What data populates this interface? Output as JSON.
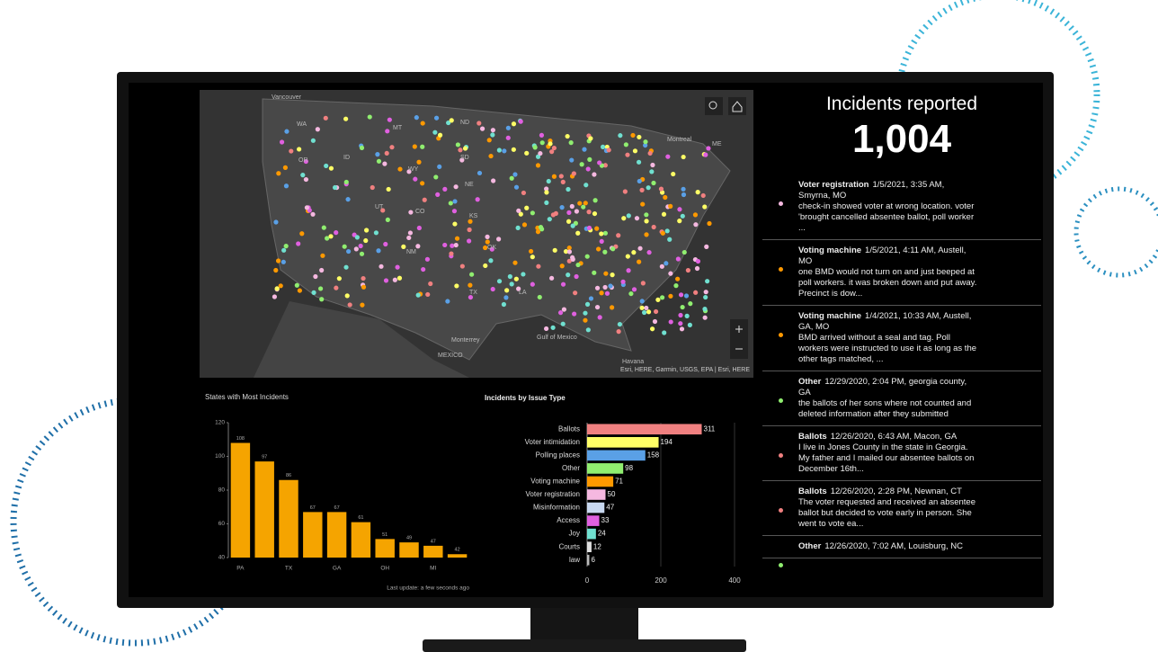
{
  "map": {
    "labels": [
      "Vancouver",
      "WA",
      "MT",
      "ND",
      "OR",
      "ID",
      "WY",
      "SD",
      "NE",
      "UT",
      "CO",
      "KS",
      "OK",
      "NM",
      "TX",
      "LA",
      "Montreal",
      "ME",
      "Monterrey",
      "MEXICO",
      "Gulf of Mexico",
      "Havana"
    ],
    "attribution": "Esri, HERE, Garmin, USGS, EPA | Esri, HERE"
  },
  "panel": {
    "title": "Incidents reported",
    "total": "1,004",
    "items": [
      {
        "title": "Voter registration",
        "meta": "1/5/2021, 3:35 AM, Smyrna, MO",
        "text": "check-in showed voter at wrong location. voter 'brought cancelled absentee ballot, poll worker ...",
        "color": "#f5b8e0"
      },
      {
        "title": "Voting machine",
        "meta": "1/5/2021, 4:11 AM, Austell, MO",
        "text": "one BMD would not turn on and just beeped at poll workers. it was broken down and put away. Precinct is dow...",
        "color": "#ff9900"
      },
      {
        "title": "Voting machine",
        "meta": "1/4/2021, 10:33 AM, Austell, GA, MO",
        "text": "BMD arrived without a seal and tag. Poll workers were instructed to use it as long as the other tags matched, ...",
        "color": "#ff9900"
      },
      {
        "title": "Other",
        "meta": "12/29/2020, 2:04 PM, georgia county, GA",
        "text": "the ballots of her sons where not counted and deleted information after they submitted",
        "color": "#90ee70"
      },
      {
        "title": "Ballots",
        "meta": "12/26/2020, 6:43 AM, Macon, GA",
        "text": "I live in Jones County in the state in Georgia. My father and I mailed our absentee ballots on December 16th...",
        "color": "#f08080"
      },
      {
        "title": "Ballots",
        "meta": "12/26/2020, 2:28 PM, Newnan, CT",
        "text": "The voter requested and received an absentee ballot but decided to vote early in person. She went to vote ea...",
        "color": "#f08080"
      },
      {
        "title": "Other",
        "meta": "12/26/2020, 7:02 AM, Louisburg, NC",
        "text": "",
        "color": "#90ee70"
      }
    ]
  },
  "chart_data": [
    {
      "type": "bar",
      "title": "States with Most Incidents",
      "categories": [
        "PA",
        null,
        "TX",
        null,
        "GA",
        null,
        "OH",
        null,
        "MI",
        null
      ],
      "values": [
        108,
        97,
        86,
        67,
        67,
        61,
        51,
        49,
        47,
        42
      ],
      "color": "#f5a400",
      "ylim": [
        40,
        120
      ],
      "yticks": [
        40,
        60,
        80,
        100,
        120
      ],
      "footnote": "Last update: a few seconds ago"
    },
    {
      "type": "hbar",
      "title": "Incidents by Issue Type",
      "categories": [
        "Ballots",
        "Voter intimidation",
        "Polling places",
        "Other",
        "Voting machine",
        "Voter registration",
        "Misinformation",
        "Access",
        "Joy",
        "Courts",
        "law"
      ],
      "values": [
        311,
        194,
        158,
        98,
        71,
        50,
        47,
        33,
        24,
        12,
        6
      ],
      "colors": [
        "#f08080",
        "#ffff66",
        "#5aa0e6",
        "#90ee70",
        "#ff9900",
        "#f5b8e0",
        "#c8d8f0",
        "#e060e0",
        "#70e0d0",
        "#dddddd",
        "#bbbbbb"
      ],
      "xlim": [
        0,
        400
      ],
      "xticks": [
        0,
        200,
        400
      ],
      "grid": true
    }
  ]
}
